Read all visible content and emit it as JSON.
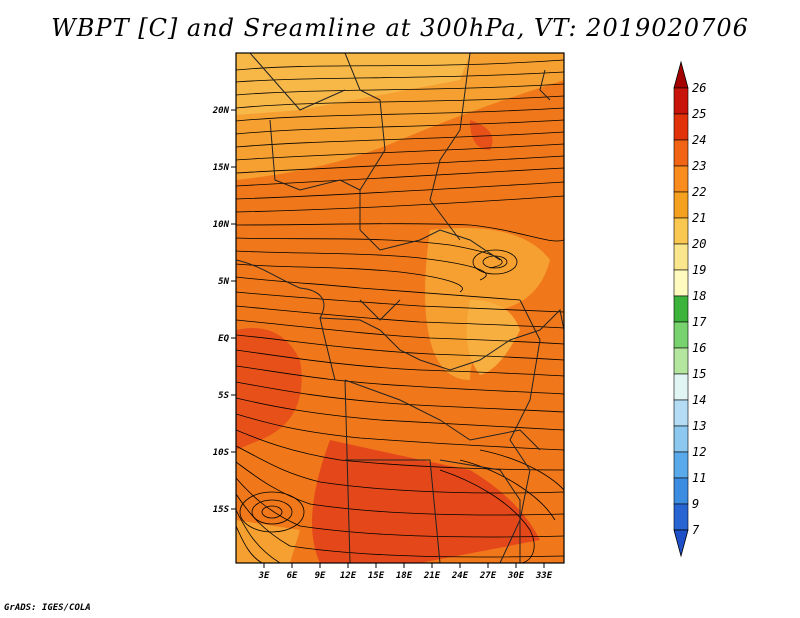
{
  "title": "WBPT [C] and Sreamline at 300hPa, VT: 2019020706",
  "credit": "GrADS: IGES/COLA",
  "map": {
    "lat_labels": [
      "20N",
      "15N",
      "10N",
      "5N",
      "EQ",
      "5S",
      "10S",
      "15S"
    ],
    "lon_labels": [
      "3E",
      "6E",
      "9E",
      "12E",
      "15E",
      "18E",
      "21E",
      "24E",
      "27E",
      "30E",
      "33E"
    ]
  },
  "colorbar": {
    "labels": [
      "26",
      "25",
      "24",
      "23",
      "22",
      "21",
      "20",
      "19",
      "18",
      "17",
      "16",
      "15",
      "14",
      "13",
      "12",
      "11",
      "9",
      "7"
    ],
    "colors": [
      "#a50000",
      "#c8140a",
      "#e1320a",
      "#f06414",
      "#fa8c1e",
      "#f5a01e",
      "#fac850",
      "#fae68c",
      "#fffabe",
      "#3cb43c",
      "#78d26e",
      "#b4e6a0",
      "#e1f5f5",
      "#b4dcf5",
      "#8cc8f0",
      "#5aaaeb",
      "#3c8ce1",
      "#2864d2",
      "#1e50c8"
    ],
    "top_triangle_color": "#a50000",
    "bottom_triangle_color": "#1e50c8"
  }
}
